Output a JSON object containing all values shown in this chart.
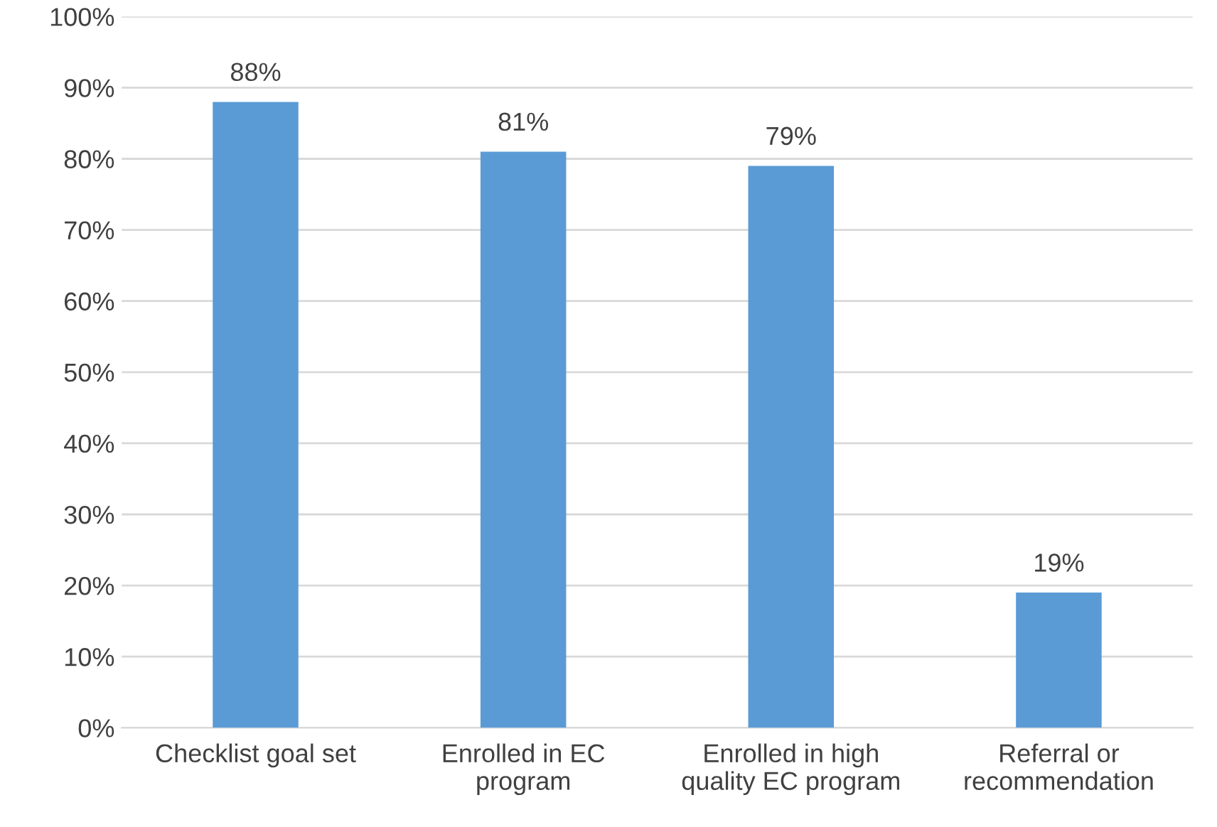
{
  "chart_data": {
    "type": "bar",
    "categories": [
      "Checklist goal set",
      "Enrolled in EC\nprogram",
      "Enrolled in high\nquality EC program",
      "Referral or\nrecommendation"
    ],
    "values": [
      88,
      81,
      79,
      19
    ],
    "value_labels": [
      "88%",
      "81%",
      "79%",
      "19%"
    ],
    "color": "#5b9bd5",
    "ylim": [
      0,
      100
    ],
    "yticks": [
      {
        "value": 0,
        "label": "0%"
      },
      {
        "value": 10,
        "label": "10%"
      },
      {
        "value": 20,
        "label": "20%"
      },
      {
        "value": 30,
        "label": "30%"
      },
      {
        "value": 40,
        "label": "40%"
      },
      {
        "value": 50,
        "label": "50%"
      },
      {
        "value": 60,
        "label": "60%"
      },
      {
        "value": 70,
        "label": "70%"
      },
      {
        "value": 80,
        "label": "80%"
      },
      {
        "value": 90,
        "label": "90%"
      },
      {
        "value": 100,
        "label": "100%"
      }
    ],
    "grid": "y",
    "legend": false
  }
}
